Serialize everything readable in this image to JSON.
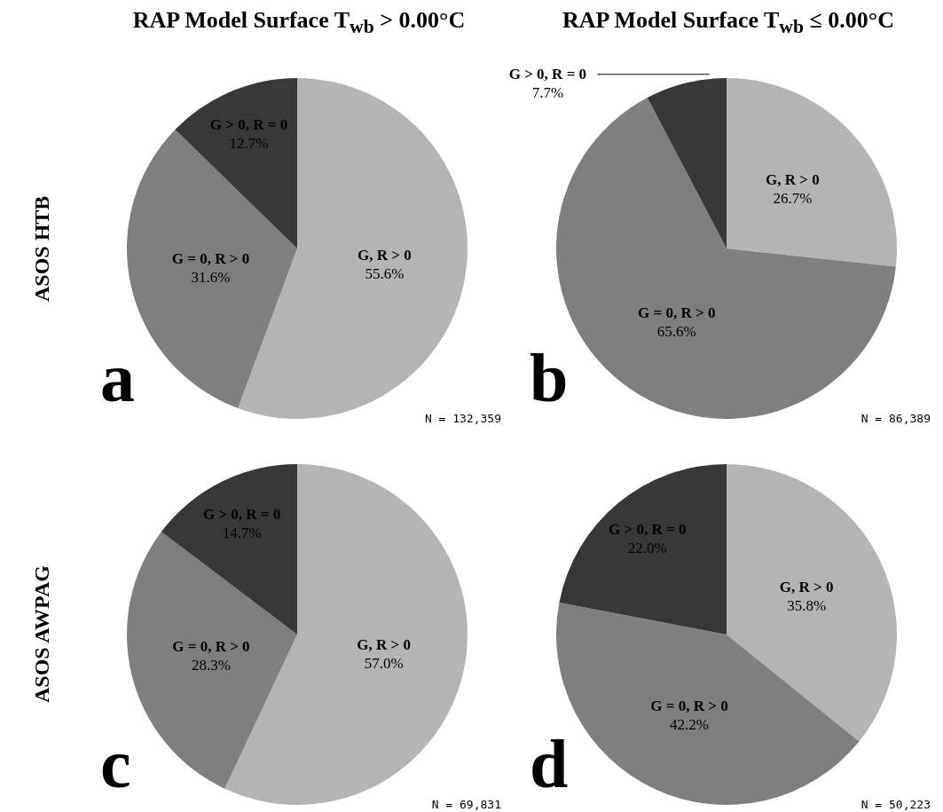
{
  "chart_data": [
    {
      "type": "pie",
      "title": "RAP Model Surface T$_{wb}$ > 0.00°C",
      "ylabel": "ASOS HTB",
      "categories": [
        "G, R > 0",
        "G = 0, R > 0",
        "G > 0, R = 0"
      ],
      "values": [
        55.6,
        31.6,
        12.7
      ],
      "colors": [
        "#b4b4b4",
        "#7f7f7f",
        "#383838"
      ],
      "value_labels": [
        "55.6%",
        "31.6%",
        "12.7%"
      ],
      "annotations": [
        "a",
        "N = 132,359"
      ]
    },
    {
      "type": "pie",
      "title": "RAP Model Surface T$_{wb}$ ≤ 0.00°C",
      "categories": [
        "G, R > 0",
        "G = 0, R > 0",
        "G > 0, R = 0"
      ],
      "values": [
        26.7,
        65.6,
        7.7
      ],
      "colors": [
        "#b4b4b4",
        "#7f7f7f",
        "#383838"
      ],
      "value_labels": [
        "26.7%",
        "65.6%",
        "7.7%"
      ],
      "annotations": [
        "b",
        "N = 86,389"
      ]
    },
    {
      "type": "pie",
      "ylabel": "ASOS AWPAG",
      "categories": [
        "G, R > 0",
        "G = 0, R > 0",
        "G > 0, R = 0"
      ],
      "values": [
        57.0,
        28.3,
        14.7
      ],
      "colors": [
        "#b4b4b4",
        "#7f7f7f",
        "#383838"
      ],
      "value_labels": [
        "57.0%",
        "28.3%",
        "14.7%"
      ],
      "annotations": [
        "c",
        "N = 69,831"
      ]
    },
    {
      "type": "pie",
      "categories": [
        "G, R > 0",
        "G = 0, R > 0",
        "G > 0, R = 0"
      ],
      "values": [
        35.8,
        42.2,
        22.0
      ],
      "colors": [
        "#b4b4b4",
        "#7f7f7f",
        "#383838"
      ],
      "value_labels": [
        "35.8%",
        "42.2%",
        "22.0%"
      ],
      "annotations": [
        "d",
        "N = 50,223"
      ]
    }
  ]
}
